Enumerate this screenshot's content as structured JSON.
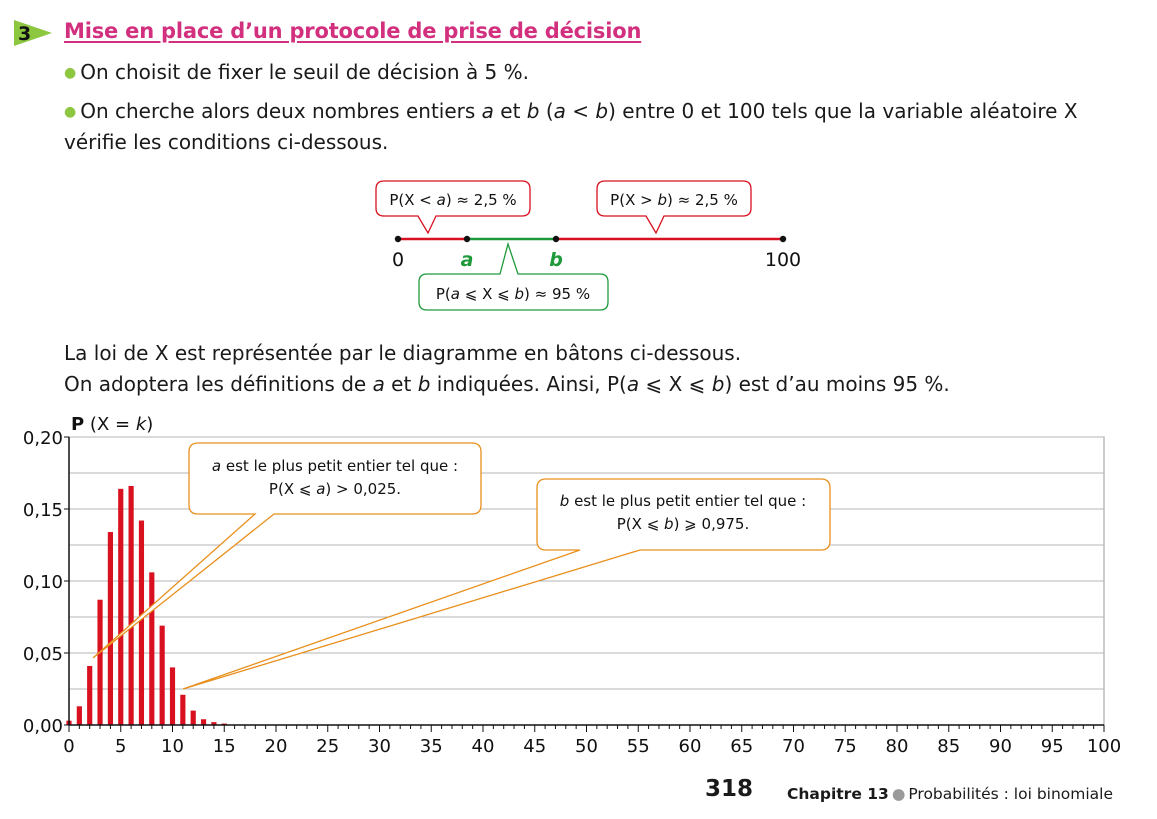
{
  "section": {
    "number": "3",
    "title": "Mise en place d’un protocole de prise de décision"
  },
  "bullets": [
    "On choisit de fixer le seuil de décision à 5 %.",
    "On cherche alors deux nombres entiers a et b (a < b) entre 0 et 100 tels que la variable aléatoire X vérifie les conditions ci-dessous."
  ],
  "number_line": {
    "labels": {
      "zero": "0",
      "a": "a",
      "b": "b",
      "hundred": "100"
    },
    "callouts": {
      "left": "P(X < a) ≈ 2,5 %",
      "right": "P(X > b) ≈ 2,5 %",
      "middle": "P(a ⩽ X ⩽ b) ≈ 95 %"
    }
  },
  "paragraph": {
    "line1": "La loi de X est représentée par le diagramme en bâtons ci-dessous.",
    "line2": "On adoptera les définitions de a et b indiquées. Ainsi, P(a ⩽ X ⩽ b) est d’au moins 95 %."
  },
  "chart_callouts": {
    "a_line1": "a est le plus petit entier tel que :",
    "a_line2": "P(X ⩽ a) > 0,025.",
    "b_line1": "b est le plus petit entier tel que :",
    "b_line2": "P(X ⩽ b) ⩾ 0,975."
  },
  "chart_data": {
    "type": "bar",
    "ylabel": "P (X = k)",
    "xlim": [
      0,
      100
    ],
    "ylim": [
      0,
      0.2
    ],
    "yticks": [
      "0,00",
      "0,05",
      "0,10",
      "0,15",
      "0,20"
    ],
    "xticks": [
      "0",
      "5",
      "10",
      "15",
      "20",
      "25",
      "30",
      "35",
      "40",
      "45",
      "50",
      "55",
      "60",
      "65",
      "70",
      "75",
      "80",
      "85",
      "90",
      "95",
      "100"
    ],
    "grid": true,
    "color": "#d8101f",
    "x": [
      0,
      1,
      2,
      3,
      4,
      5,
      6,
      7,
      8,
      9,
      10,
      11,
      12,
      13,
      14,
      15
    ],
    "values": [
      0.003,
      0.013,
      0.041,
      0.087,
      0.134,
      0.164,
      0.166,
      0.142,
      0.106,
      0.069,
      0.04,
      0.021,
      0.01,
      0.004,
      0.002,
      0.001
    ]
  },
  "footer": {
    "page": "318",
    "chapter": "Chapitre 13",
    "subject": "Probabilités : loi binomiale"
  },
  "colors": {
    "title_pink": "#d2307e",
    "badge_green": "#8dc63f",
    "red": "#d8101f",
    "green": "#1e9a3a",
    "orange": "#e8901e"
  }
}
